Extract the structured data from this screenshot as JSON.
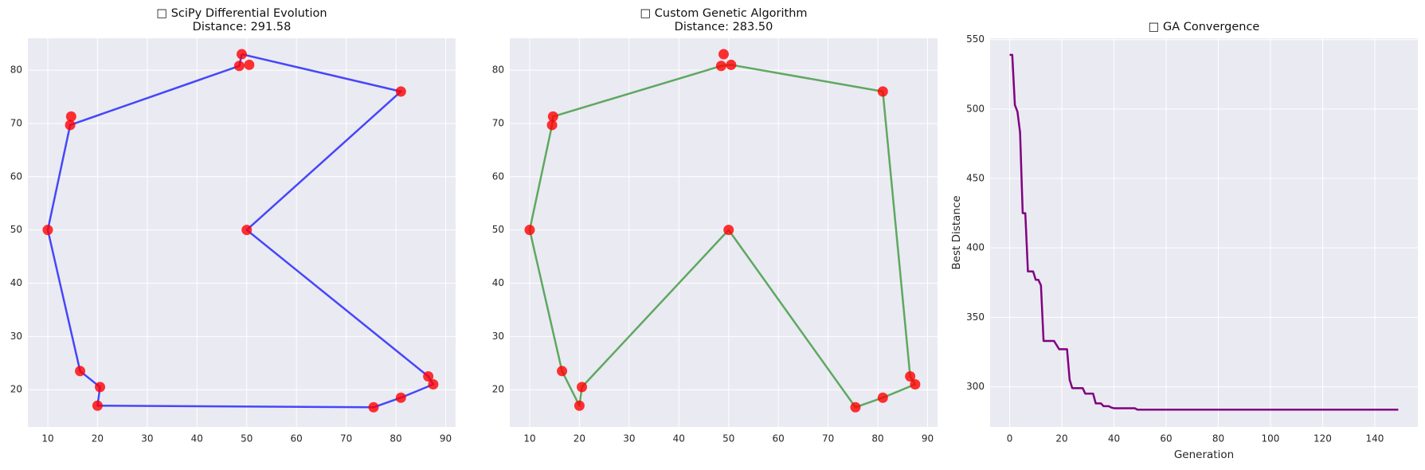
{
  "chart_data": [
    {
      "type": "route",
      "title": "□ SciPy Differential Evolution",
      "subtitle": "Distance: 291.58",
      "points": {
        "color": "#ff0000",
        "x": [
          49,
          48.5,
          50.5,
          81,
          50,
          86.5,
          87.5,
          81,
          75.5,
          20,
          20.5,
          16.5,
          10,
          14.5,
          14.7
        ],
        "y": [
          83,
          80.8,
          81,
          76,
          50,
          22.5,
          21,
          18.5,
          16.7,
          17,
          20.5,
          23.5,
          50,
          69.7,
          71.3
        ]
      },
      "route": {
        "color": "#0000ff",
        "x": [
          49,
          81,
          50,
          86.5,
          87.5,
          81,
          75.5,
          20,
          20.5,
          16.5,
          10,
          14.5,
          48.5,
          49
        ],
        "y": [
          83,
          76,
          50,
          22.5,
          21,
          18.5,
          16.7,
          17,
          20.5,
          23.5,
          50,
          69.7,
          80.8,
          83
        ]
      },
      "xlim": [
        6,
        92
      ],
      "xticks": [
        10,
        20,
        30,
        40,
        50,
        60,
        70,
        80,
        90
      ],
      "ylim": [
        13,
        86
      ],
      "yticks": [
        20,
        30,
        40,
        50,
        60,
        70,
        80
      ],
      "grid": true
    },
    {
      "type": "route",
      "title": "□ Custom Genetic Algorithm",
      "subtitle": "Distance: 283.50",
      "points": {
        "color": "#ff0000",
        "x": [
          49,
          48.5,
          50.5,
          81,
          50,
          86.5,
          87.5,
          81,
          75.5,
          20,
          20.5,
          16.5,
          10,
          14.5,
          14.7
        ],
        "y": [
          83,
          80.8,
          81,
          76,
          50,
          22.5,
          21,
          18.5,
          16.7,
          17,
          20.5,
          23.5,
          50,
          69.7,
          71.3
        ]
      },
      "route": {
        "color": "#228b22",
        "x": [
          48.5,
          50.5,
          81,
          86.5,
          87.5,
          81,
          75.5,
          50,
          20.5,
          20,
          16.5,
          10,
          14.5,
          14.7,
          48.5
        ],
        "y": [
          80.8,
          81,
          76,
          22.5,
          21,
          18.5,
          16.7,
          50,
          20.5,
          17,
          23.5,
          50,
          69.7,
          71.3,
          80.8
        ]
      },
      "xlim": [
        6,
        92
      ],
      "xticks": [
        10,
        20,
        30,
        40,
        50,
        60,
        70,
        80,
        90
      ],
      "ylim": [
        13,
        86
      ],
      "yticks": [
        20,
        30,
        40,
        50,
        60,
        70,
        80
      ],
      "grid": true
    },
    {
      "type": "line",
      "title": "□ GA Convergence",
      "x_label": "Generation",
      "y_label": "Best Distance",
      "color": "#800080",
      "x": [
        0,
        1,
        2,
        3,
        4,
        5,
        6,
        7,
        9,
        10,
        11,
        12,
        13,
        17,
        19,
        22,
        23,
        24,
        28,
        29,
        32,
        33,
        35,
        36,
        38,
        39,
        40,
        48,
        49,
        149
      ],
      "values": [
        539,
        539,
        503,
        498,
        483,
        425,
        425,
        383,
        383,
        377,
        377,
        373,
        333,
        333,
        327,
        327,
        305,
        299,
        299,
        295,
        295,
        288,
        288,
        286,
        286,
        285,
        284.5,
        284.5,
        283.5,
        283.5
      ],
      "xlim": [
        -7.5,
        156.5
      ],
      "xticks": [
        0,
        20,
        40,
        60,
        80,
        100,
        120,
        140
      ],
      "ylim": [
        271,
        551
      ],
      "yticks": [
        300,
        350,
        400,
        450,
        500,
        550
      ],
      "grid": true
    }
  ]
}
